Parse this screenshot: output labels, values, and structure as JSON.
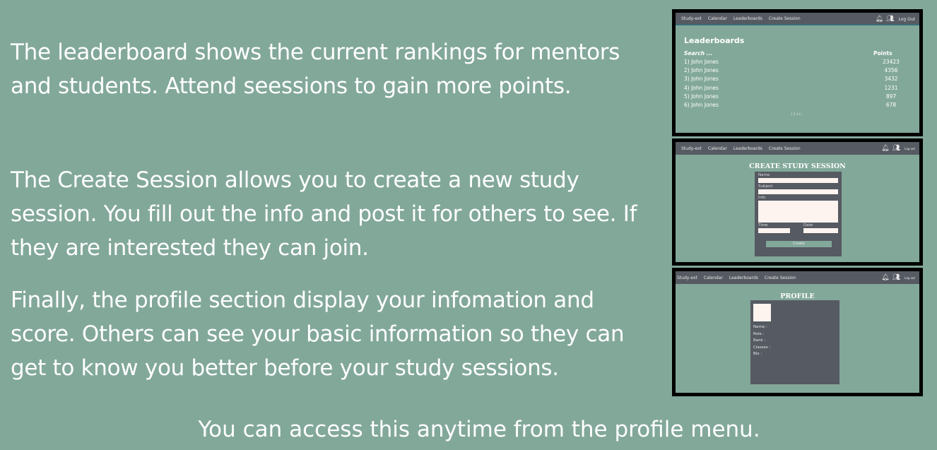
{
  "paragraphs": {
    "leaderboard": "The leaderboard shows the current rankings for mentors and students. Attend seessions to gain more points.",
    "create_session": "The Create Session allows you to create a new study session. You fill out the info and post it for others to see. If they are interested they can join.",
    "profile": "Finally, the profile section display your infomation and score. Others can see your basic information so they can get to know you better before your study sessions."
  },
  "footer": "You can access this anytime from the profile menu.",
  "nav": {
    "brand": "Study-ext",
    "calendar": "Calendar",
    "leaderboards": "Leaderboards",
    "create_session": "Create Session",
    "logout": "Log Out",
    "logout_small": "Log out"
  },
  "leaderboard": {
    "title": "Leaderboards",
    "search": "Search ...",
    "points_header": "Points",
    "rows": [
      {
        "name": "1) John Jones",
        "points": "23423"
      },
      {
        "name": "2) John Jones",
        "points": "4356"
      },
      {
        "name": "3) John Jones",
        "points": "3432"
      },
      {
        "name": "4) John Jones",
        "points": "1231"
      },
      {
        "name": "5) John Jones",
        "points": "897"
      },
      {
        "name": "6) John Jones",
        "points": "678"
      }
    ],
    "pagination": "1 2 3 4 ..."
  },
  "create_session": {
    "title": "CREATE STUDY SESSION",
    "name_label": "Name",
    "subject_label": "Subject",
    "info_label": "Info",
    "time_label": "Time",
    "date_label": "Date",
    "create_button": "Create"
  },
  "profile": {
    "title": "PROFILE",
    "fields": [
      "Name :",
      "Role :",
      "Rank :",
      "Classes :",
      "Bio :"
    ]
  },
  "colors": {
    "background": "#82a89a",
    "nav": "#565a62",
    "panel": "#565a62",
    "input": "#fdf3ef"
  }
}
